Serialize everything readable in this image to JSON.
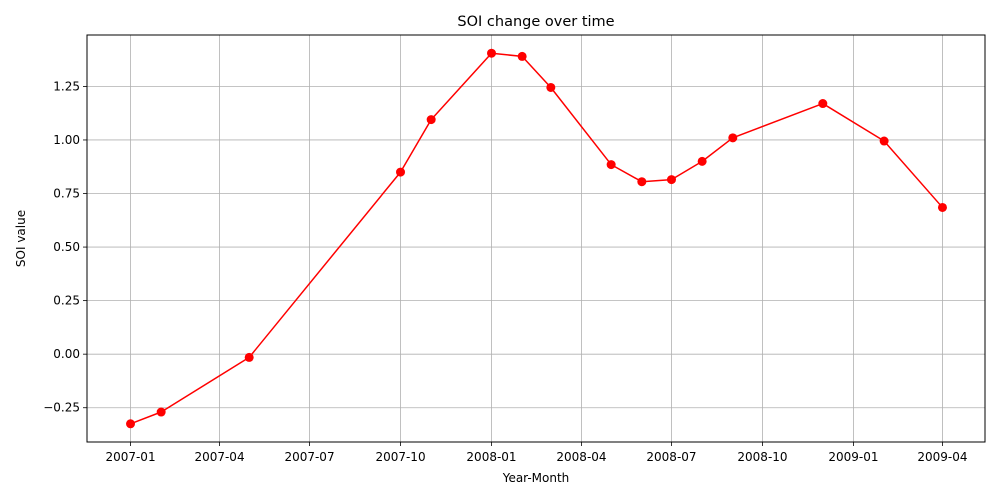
{
  "chart_data": {
    "type": "line",
    "title": "SOI change over time",
    "xlabel": "Year-Month",
    "ylabel": "SOI value",
    "x_tick_labels": [
      "2007-01",
      "2007-04",
      "2007-07",
      "2007-10",
      "2008-01",
      "2008-04",
      "2008-07",
      "2008-10",
      "2009-01",
      "2009-04"
    ],
    "y_tick_labels": [
      "−0.25",
      "0.00",
      "0.25",
      "0.50",
      "0.75",
      "1.00",
      "1.25"
    ],
    "x_ticks": [
      "2007-01-01",
      "2007-04-01",
      "2007-07-01",
      "2007-10-01",
      "2008-01-01",
      "2008-04-01",
      "2008-07-01",
      "2008-10-01",
      "2009-01-01",
      "2009-04-01"
    ],
    "y_ticks": [
      -0.25,
      0.0,
      0.25,
      0.5,
      0.75,
      1.0,
      1.25
    ],
    "xlim": [
      "2006-11-18",
      "2009-05-14"
    ],
    "ylim": [
      -0.41,
      1.49
    ],
    "grid": true,
    "line_color": "#ff0000",
    "marker": "circle",
    "series": [
      {
        "x": [
          "2007-01-01",
          "2007-02-01",
          "2007-05-01",
          "2007-10-01",
          "2007-11-01",
          "2008-01-01",
          "2008-02-01",
          "2008-03-01",
          "2008-05-01",
          "2008-06-01",
          "2008-07-01",
          "2008-08-01",
          "2008-09-01",
          "2008-12-01",
          "2009-02-01",
          "2009-04-01"
        ],
        "y": [
          -0.325,
          -0.27,
          -0.015,
          0.85,
          1.095,
          1.405,
          1.39,
          1.245,
          0.885,
          0.805,
          0.815,
          0.9,
          1.01,
          1.17,
          0.995,
          0.685
        ]
      }
    ]
  }
}
